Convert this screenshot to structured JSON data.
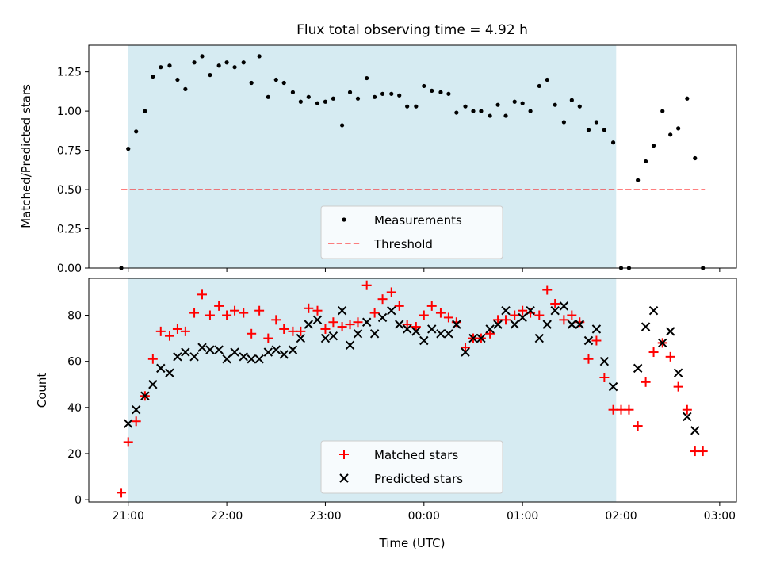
{
  "figure": {
    "title": "Flux total observing time = 4.92 h",
    "colors": {
      "span": "#add8e6",
      "measurements": "#000000",
      "threshold": "#ff0000",
      "matched": "#ff0000",
      "predicted": "#000000"
    }
  },
  "chart_data": [
    {
      "type": "scatter",
      "title": "Flux total observing time = 4.92 h",
      "ylabel": "Matched/Predicted stars",
      "xlabel": "",
      "xunit": "hours (21:00 = 21, next-day hours continue past 24)",
      "xlim": [
        20.6,
        27.17
      ],
      "ylim": [
        0,
        1.42
      ],
      "yticks": [
        0.0,
        0.25,
        0.5,
        0.75,
        1.0,
        1.25
      ],
      "ytick_labels": [
        "0.00",
        "0.25",
        "0.50",
        "0.75",
        "1.00",
        "1.25"
      ],
      "shaded_span": [
        21.0,
        25.95
      ],
      "legend": {
        "placement": "lower center",
        "entries": [
          "Measurements",
          "Threshold"
        ]
      },
      "threshold": {
        "name": "Threshold",
        "y": 0.5,
        "x": [
          20.93,
          26.85
        ]
      },
      "series": [
        {
          "name": "Measurements",
          "x": [
            20.93,
            21.0,
            21.08,
            21.17,
            21.25,
            21.33,
            21.42,
            21.5,
            21.58,
            21.67,
            21.75,
            21.83,
            21.92,
            22.0,
            22.08,
            22.17,
            22.25,
            22.33,
            22.42,
            22.5,
            22.58,
            22.67,
            22.75,
            22.83,
            22.92,
            23.0,
            23.08,
            23.17,
            23.25,
            23.33,
            23.42,
            23.5,
            23.58,
            23.67,
            23.75,
            23.83,
            23.92,
            24.0,
            24.08,
            24.17,
            24.25,
            24.33,
            24.42,
            24.5,
            24.58,
            24.67,
            24.75,
            24.83,
            24.92,
            25.0,
            25.08,
            25.17,
            25.25,
            25.33,
            25.42,
            25.5,
            25.58,
            25.67,
            25.75,
            25.83,
            25.92,
            26.0,
            26.08,
            26.17,
            26.25,
            26.33,
            26.42,
            26.5,
            26.58,
            26.67,
            26.75,
            26.83
          ],
          "y": [
            0.0,
            0.76,
            0.87,
            1.0,
            1.22,
            1.28,
            1.29,
            1.2,
            1.14,
            1.31,
            1.35,
            1.23,
            1.29,
            1.31,
            1.28,
            1.31,
            1.18,
            1.35,
            1.09,
            1.2,
            1.18,
            1.12,
            1.06,
            1.09,
            1.05,
            1.06,
            1.08,
            0.91,
            1.12,
            1.08,
            1.21,
            1.09,
            1.11,
            1.11,
            1.1,
            1.03,
            1.03,
            1.16,
            1.13,
            1.12,
            1.11,
            0.99,
            1.03,
            1.0,
            1.0,
            0.97,
            1.04,
            0.97,
            1.06,
            1.05,
            1.0,
            1.16,
            1.2,
            1.04,
            0.93,
            1.07,
            1.03,
            0.88,
            0.93,
            0.88,
            0.8,
            0.0,
            0.0,
            0.56,
            0.68,
            0.78,
            1.0,
            0.85,
            0.89,
            1.08,
            0.7,
            0.0
          ]
        }
      ]
    },
    {
      "type": "scatter",
      "title": "",
      "ylabel": "Count",
      "xlabel": "Time (UTC)",
      "xlim": [
        20.6,
        27.17
      ],
      "ylim": [
        -1,
        96
      ],
      "yticks": [
        0,
        20,
        40,
        60,
        80
      ],
      "ytick_labels": [
        "0",
        "20",
        "40",
        "60",
        "80"
      ],
      "xticks": [
        21,
        22,
        23,
        24,
        25,
        26,
        27
      ],
      "xtick_labels": [
        "21:00",
        "22:00",
        "23:00",
        "00:00",
        "01:00",
        "02:00",
        "03:00"
      ],
      "shaded_span": [
        21.0,
        25.95
      ],
      "legend": {
        "placement": "lower center",
        "entries": [
          "Matched stars",
          "Predicted stars"
        ]
      },
      "series": [
        {
          "name": "Matched stars",
          "marker": "plus",
          "x": [
            20.93,
            21.0,
            21.08,
            21.17,
            21.25,
            21.33,
            21.42,
            21.5,
            21.58,
            21.67,
            21.75,
            21.83,
            21.92,
            22.0,
            22.08,
            22.17,
            22.25,
            22.33,
            22.42,
            22.5,
            22.58,
            22.67,
            22.75,
            22.83,
            22.92,
            23.0,
            23.08,
            23.17,
            23.25,
            23.33,
            23.42,
            23.5,
            23.58,
            23.67,
            23.75,
            23.83,
            23.92,
            24.0,
            24.08,
            24.17,
            24.25,
            24.33,
            24.42,
            24.5,
            24.58,
            24.67,
            24.75,
            24.83,
            24.92,
            25.0,
            25.08,
            25.17,
            25.25,
            25.33,
            25.42,
            25.5,
            25.58,
            25.67,
            25.75,
            25.83,
            25.92,
            26.0,
            26.08,
            26.17,
            26.25,
            26.33,
            26.42,
            26.5,
            26.58,
            26.67,
            26.75,
            26.83
          ],
          "y": [
            3,
            25,
            34,
            45,
            61,
            73,
            71,
            74,
            73,
            81,
            89,
            80,
            84,
            80,
            82,
            81,
            72,
            82,
            70,
            78,
            74,
            73,
            73,
            83,
            82,
            74,
            77,
            75,
            76,
            77,
            93,
            81,
            87,
            90,
            84,
            76,
            75,
            80,
            84,
            81,
            79,
            77,
            66,
            70,
            70,
            72,
            78,
            78,
            80,
            82,
            81,
            80,
            91,
            85,
            78,
            80,
            77,
            61,
            69,
            53,
            39,
            39,
            39,
            32,
            51,
            64,
            68,
            62,
            49,
            39,
            21,
            21
          ]
        },
        {
          "name": "Predicted stars",
          "marker": "x",
          "x": [
            21.0,
            21.08,
            21.17,
            21.25,
            21.33,
            21.42,
            21.5,
            21.58,
            21.67,
            21.75,
            21.83,
            21.92,
            22.0,
            22.08,
            22.17,
            22.25,
            22.33,
            22.42,
            22.5,
            22.58,
            22.67,
            22.75,
            22.83,
            22.92,
            23.0,
            23.08,
            23.17,
            23.25,
            23.33,
            23.42,
            23.5,
            23.58,
            23.67,
            23.75,
            23.83,
            23.92,
            24.0,
            24.08,
            24.17,
            24.25,
            24.33,
            24.42,
            24.5,
            24.58,
            24.67,
            24.75,
            24.83,
            24.92,
            25.0,
            25.08,
            25.17,
            25.25,
            25.33,
            25.42,
            25.5,
            25.58,
            25.67,
            25.75,
            25.83,
            25.92,
            26.17,
            26.25,
            26.33,
            26.42,
            26.5,
            26.58,
            26.67,
            26.75
          ],
          "y": [
            33,
            39,
            45,
            50,
            57,
            55,
            62,
            64,
            62,
            66,
            65,
            65,
            61,
            64,
            62,
            61,
            61,
            64,
            65,
            63,
            65,
            70,
            76,
            78,
            70,
            71,
            82,
            67,
            72,
            77,
            72,
            79,
            82,
            76,
            74,
            73,
            69,
            74,
            72,
            72,
            76,
            64,
            70,
            70,
            74,
            76,
            82,
            76,
            79,
            82,
            70,
            76,
            82,
            84,
            76,
            76,
            69,
            74,
            60,
            49,
            57,
            75,
            82,
            68,
            73,
            55,
            36,
            30
          ]
        }
      ]
    }
  ]
}
